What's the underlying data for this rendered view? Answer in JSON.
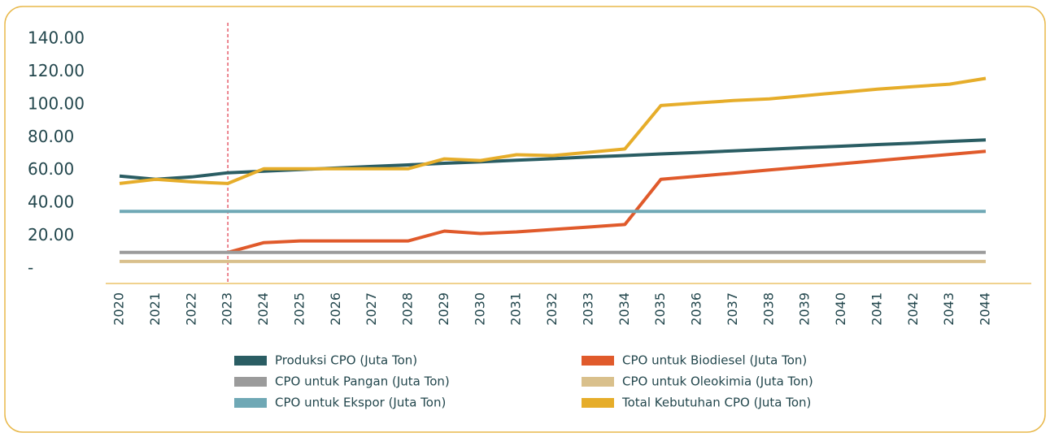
{
  "chart_data": {
    "type": "line",
    "categories": [
      "2020",
      "2021",
      "2022",
      "2023",
      "2024",
      "2025",
      "2026",
      "2027",
      "2028",
      "2029",
      "2030",
      "2031",
      "2032",
      "2033",
      "2034",
      "2035",
      "2036",
      "2037",
      "2038",
      "2039",
      "2040",
      "2041",
      "2042",
      "2043",
      "2044"
    ],
    "series": [
      {
        "name": "Produksi CPO (Juta Ton)",
        "color": "#2a5d63",
        "values": [
          56.5,
          54.5,
          56,
          58.5,
          59.5,
          60.5,
          61.4,
          62.4,
          63.3,
          64.3,
          65.2,
          66.2,
          67.1,
          68.1,
          69.0,
          70.0,
          70.9,
          71.9,
          72.8,
          73.8,
          74.7,
          75.7,
          76.6,
          77.6,
          78.5
        ]
      },
      {
        "name": "CPO untuk Biodiesel (Juta Ton)",
        "color": "#e05a2b",
        "values": [
          null,
          null,
          null,
          10,
          16,
          17,
          17,
          17,
          17,
          23,
          21.5,
          22.5,
          24,
          25.5,
          27,
          54.5,
          56.4,
          58.3,
          60.2,
          62.1,
          64.0,
          65.9,
          67.8,
          69.7,
          71.6
        ]
      },
      {
        "name": "CPO untuk Pangan (Juta Ton)",
        "color": "#9b9b9b",
        "values": [
          10,
          10,
          10,
          10,
          10,
          10,
          10,
          10,
          10,
          10,
          10,
          10,
          10,
          10,
          10,
          10,
          10,
          10,
          10,
          10,
          10,
          10,
          10,
          10,
          10
        ]
      },
      {
        "name": "CPO untuk Oleokimia (Juta Ton)",
        "color": "#d9c08c",
        "values": [
          4.5,
          4.5,
          4.5,
          4.5,
          4.5,
          4.5,
          4.5,
          4.5,
          4.5,
          4.5,
          4.5,
          4.5,
          4.5,
          4.5,
          4.5,
          4.5,
          4.5,
          4.5,
          4.5,
          4.5,
          4.5,
          4.5,
          4.5,
          4.5,
          4.5
        ]
      },
      {
        "name": "CPO untuk Ekspor (Juta Ton)",
        "color": "#6fa8b5",
        "values": [
          35,
          35,
          35,
          35,
          35,
          35,
          35,
          35,
          35,
          35,
          35,
          35,
          35,
          35,
          35,
          35,
          35,
          35,
          35,
          35,
          35,
          35,
          35,
          35,
          35
        ]
      },
      {
        "name": "Total Kebutuhan CPO (Juta Ton)",
        "color": "#e6ad2a",
        "values": [
          52,
          54.5,
          53,
          52,
          61,
          61,
          61,
          61,
          61,
          67,
          66,
          69.5,
          69,
          71,
          73,
          99.5,
          101,
          102.5,
          103.5,
          105.5,
          107.5,
          109.5,
          111,
          112.5,
          116
        ]
      }
    ],
    "ylim": [
      0,
      140
    ],
    "yticks": [
      {
        "value": 0,
        "label": "-"
      },
      {
        "value": 20,
        "label": "20.00"
      },
      {
        "value": 40,
        "label": "40.00"
      },
      {
        "value": 60,
        "label": "60.00"
      },
      {
        "value": 80,
        "label": "80.00"
      },
      {
        "value": 100,
        "label": "100.00"
      },
      {
        "value": 120,
        "label": "120.00"
      },
      {
        "value": 140,
        "label": "140.00"
      }
    ],
    "reference_line": {
      "x": 2023,
      "color": "#e03a4a"
    },
    "axis_color": "#e8b84a",
    "legend": "bottom"
  }
}
